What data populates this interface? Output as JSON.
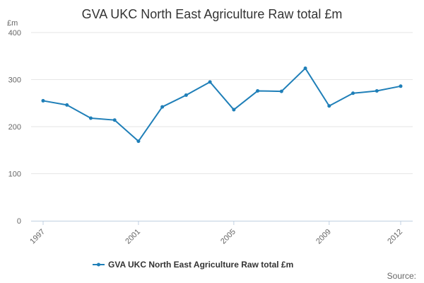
{
  "chart_data": {
    "type": "line",
    "title": "GVA UKC North East Agriculture Raw total £m",
    "ylabel": "£m",
    "xlabel": "",
    "ylim": [
      0,
      400
    ],
    "yticks": [
      0,
      100,
      200,
      300,
      400
    ],
    "xlim": [
      1997,
      2012
    ],
    "xticks": [
      1997,
      2001,
      2005,
      2009,
      2012
    ],
    "grid": true,
    "legend_position": "bottom-center",
    "series": [
      {
        "name": "GVA UKC North East Agriculture Raw total £m",
        "color": "#1f7fb8",
        "x": [
          1997,
          1998,
          1999,
          2000,
          2001,
          2002,
          2003,
          2004,
          2005,
          2006,
          2007,
          2008,
          2009,
          2010,
          2011,
          2012
        ],
        "values": [
          255,
          246,
          218,
          214,
          169,
          242,
          267,
          295,
          236,
          276,
          275,
          324,
          244,
          271,
          276,
          286
        ]
      }
    ],
    "source_label": "Source:"
  }
}
